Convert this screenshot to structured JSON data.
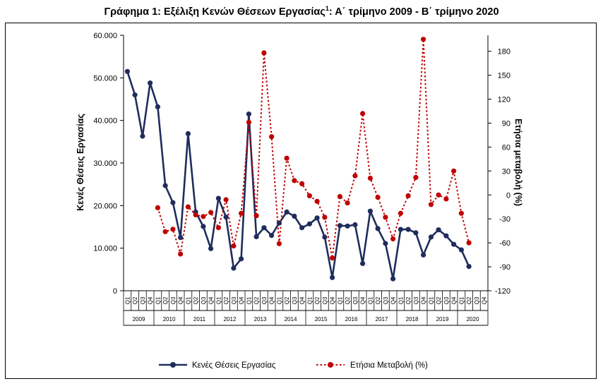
{
  "title": {
    "main": "Γράφημα 1: Εξέλιξη Κενών Θέσεων Εργασίας",
    "sup": "1",
    "rest": ": Α΄ τρίμηνο 2009 - Β΄ τρίμηνο 2020"
  },
  "chart_data": {
    "type": "line",
    "title": "Γράφημα 1: Εξέλιξη Κενών Θέσεων Εργασίας1: Α΄ τρίμηνο 2009 - Β΄ τρίμηνο 2020",
    "quarter_labels": [
      "Q1",
      "Q2",
      "Q3",
      "Q4"
    ],
    "years": [
      "2009",
      "2010",
      "2011",
      "2012",
      "2013",
      "2014",
      "2015",
      "2016",
      "2017",
      "2018",
      "2019",
      "2020"
    ],
    "ylabel": "Κενές Θέσεις Εργασίας",
    "y2label": "Ετήσια μεταβολή (%)",
    "ylim": [
      0,
      60000
    ],
    "y2lim": [
      -120,
      200
    ],
    "y_ticks": [
      "0",
      "10.000",
      "20.000",
      "30.000",
      "40.000",
      "50.000",
      "60.000"
    ],
    "y2_ticks": [
      "-120",
      "-90",
      "-60",
      "-30",
      "0",
      "30",
      "60",
      "90",
      "120",
      "150",
      "180"
    ],
    "grid": false,
    "legend_position": "bottom",
    "series": [
      {
        "name": "Κενές Θέσεις Εργασίας",
        "axis": "left",
        "color": "#1f2d5c",
        "style": "solid",
        "values": [
          51500,
          46000,
          36300,
          48800,
          43200,
          24700,
          20700,
          12500,
          36900,
          18500,
          15100,
          9900,
          21700,
          17300,
          5300,
          7500,
          41500,
          12700,
          14800,
          13000,
          15900,
          18500,
          17500,
          14800,
          15700,
          17100,
          12600,
          3100,
          15300,
          15200,
          15500,
          6400,
          18700,
          14600,
          11100,
          2800,
          14400,
          14400,
          13600,
          8400,
          12600,
          14300,
          12900,
          10900,
          9600,
          5700,
          null,
          null
        ]
      },
      {
        "name": "Ετήσια Μεταβολή (%)",
        "axis": "right",
        "color": "#c00000",
        "style": "dotted",
        "values": [
          null,
          null,
          null,
          null,
          -16,
          -46,
          -43,
          -74,
          -15,
          -25,
          -27,
          -22,
          -41,
          -6,
          -64,
          -23,
          91,
          -26,
          178,
          73,
          -61,
          46,
          18,
          14,
          -1,
          -8,
          -28,
          -79,
          -2,
          -10,
          24,
          102,
          21,
          -3,
          -28,
          -55,
          -23,
          -1,
          22,
          195,
          -12,
          0,
          -5,
          30,
          -23,
          -60,
          null,
          null
        ]
      }
    ]
  },
  "legend": {
    "series1_label": "Κενές Θέσεις Εργασίας",
    "series2_label": "Ετήσια Μεταβολή (%)"
  }
}
